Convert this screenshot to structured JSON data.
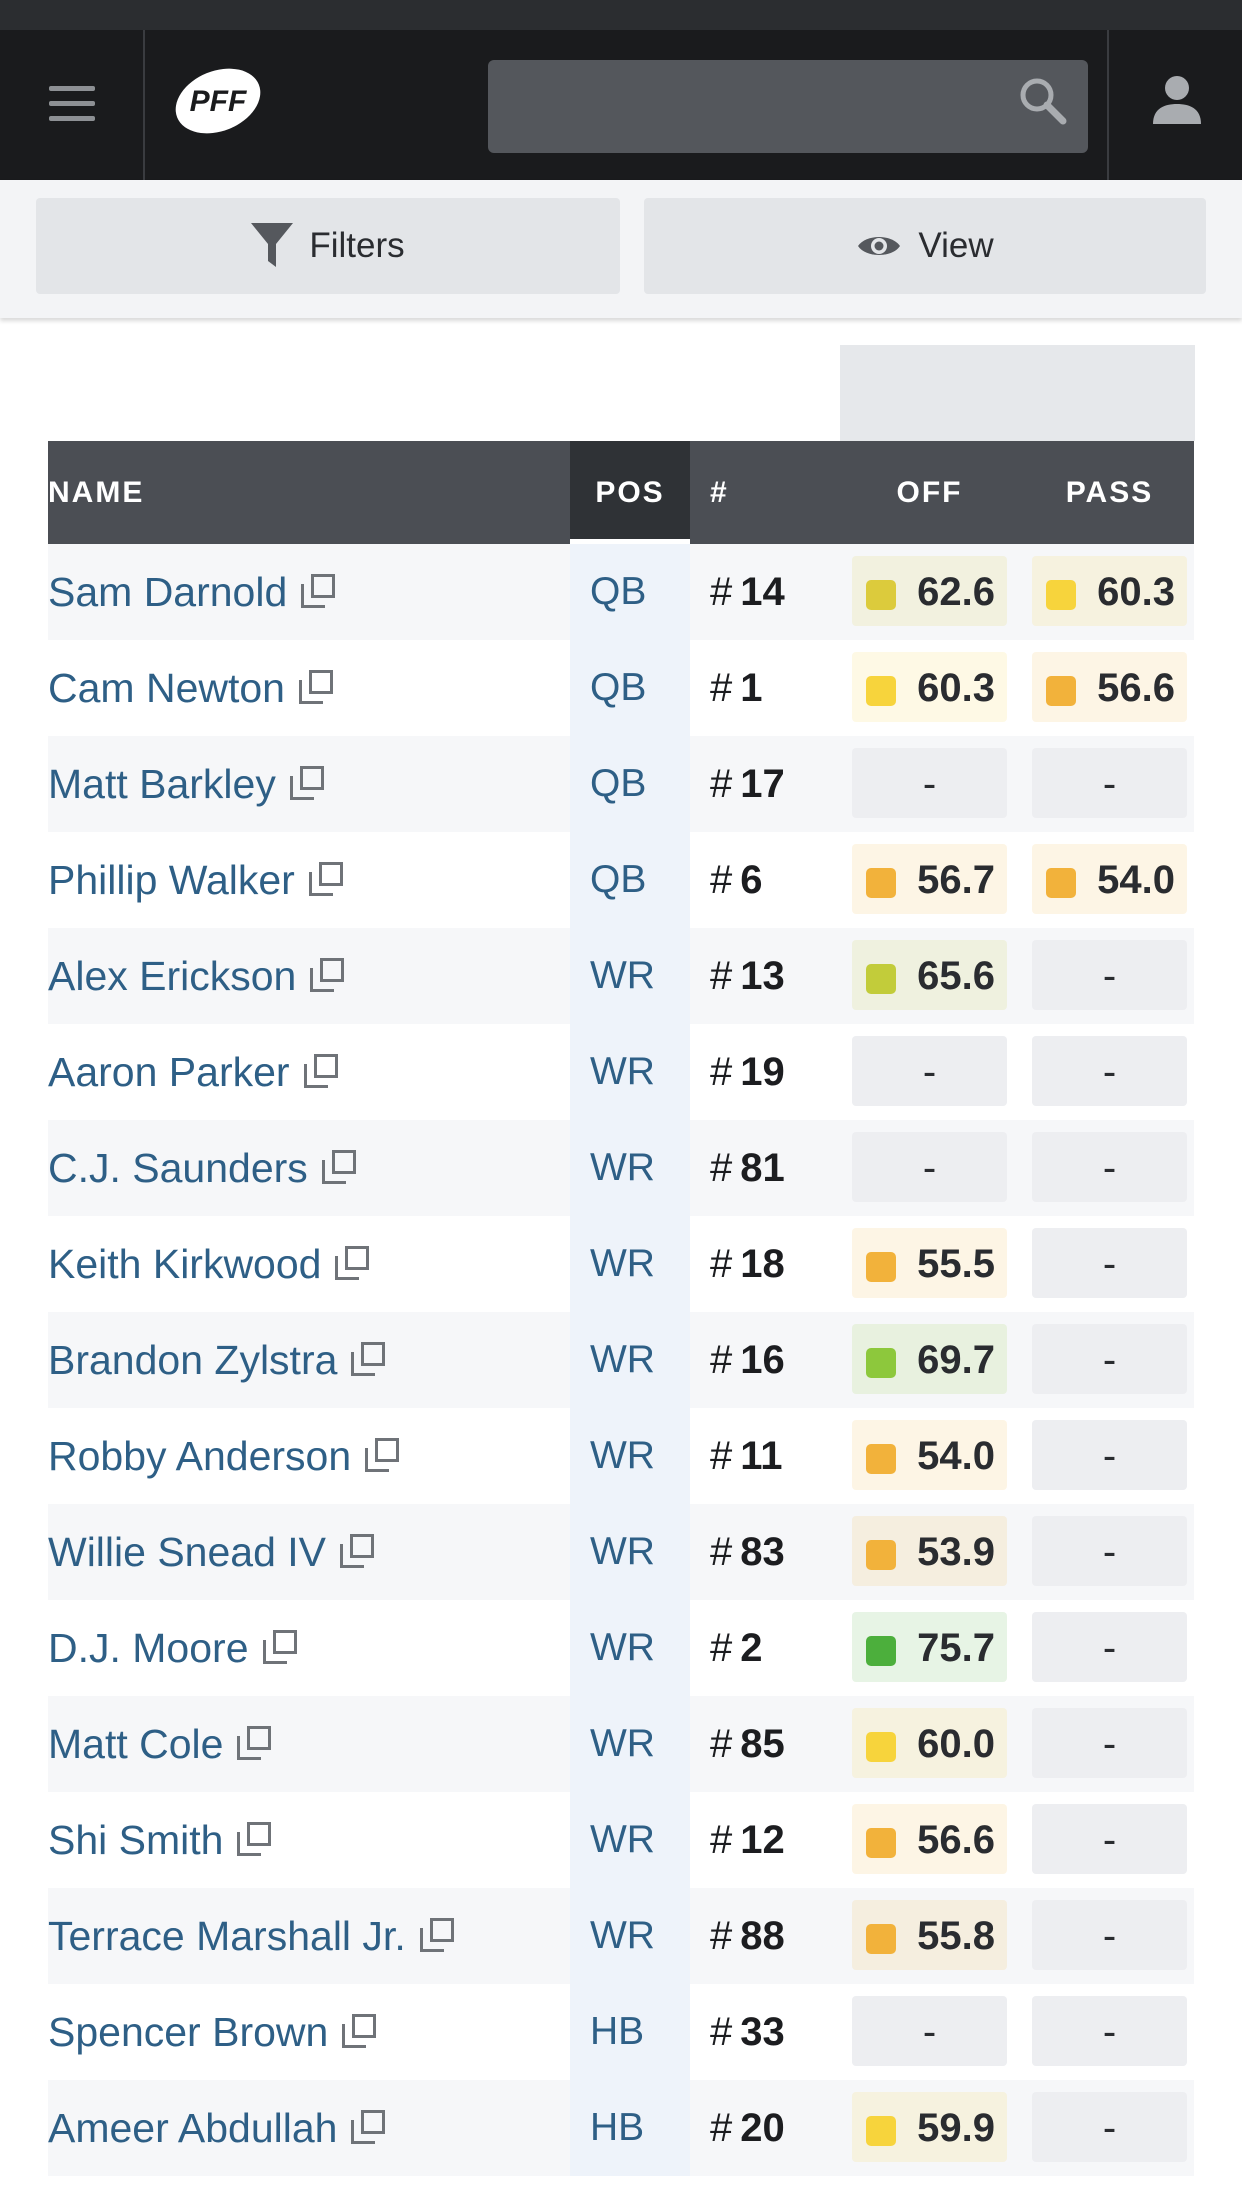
{
  "header": {
    "logo_text": "PFF",
    "search": {
      "value": "",
      "placeholder": ""
    }
  },
  "toolbar": {
    "filters_label": "Filters",
    "view_label": "View"
  },
  "columns": {
    "name": "NAME",
    "pos": "POS",
    "num": "#",
    "off": "OFF",
    "pass": "PASS"
  },
  "colors": {
    "green_dark": "#4caf3c",
    "green": "#8dc83c",
    "yellow_green": "#c2cc3a",
    "olive_yellow": "#dccb3c",
    "yellow": "#f7d43c",
    "orange": "#f2b23b"
  },
  "players": [
    {
      "name": "Sam Darnold",
      "pos": "QB",
      "num_prefix": "#",
      "num": "14",
      "off": "62.6",
      "off_color": "#dccb3c",
      "pass": "60.3",
      "pass_color": "#f7d43c"
    },
    {
      "name": "Cam Newton",
      "pos": "QB",
      "num_prefix": "#",
      "num": "1",
      "off": "60.3",
      "off_color": "#f7d43c",
      "pass": "56.6",
      "pass_color": "#f2b23b"
    },
    {
      "name": "Matt Barkley",
      "pos": "QB",
      "num_prefix": "#",
      "num": "17",
      "off": "-",
      "off_color": "",
      "pass": "-",
      "pass_color": ""
    },
    {
      "name": "Phillip Walker",
      "pos": "QB",
      "num_prefix": "#",
      "num": "6",
      "off": "56.7",
      "off_color": "#f2b23b",
      "pass": "54.0",
      "pass_color": "#f2b23b"
    },
    {
      "name": "Alex Erickson",
      "pos": "WR",
      "num_prefix": "#",
      "num": "13",
      "off": "65.6",
      "off_color": "#c2cc3a",
      "pass": "-",
      "pass_color": ""
    },
    {
      "name": "Aaron Parker",
      "pos": "WR",
      "num_prefix": "#",
      "num": "19",
      "off": "-",
      "off_color": "",
      "pass": "-",
      "pass_color": ""
    },
    {
      "name": "C.J. Saunders",
      "pos": "WR",
      "num_prefix": "#",
      "num": "81",
      "off": "-",
      "off_color": "",
      "pass": "-",
      "pass_color": ""
    },
    {
      "name": "Keith Kirkwood",
      "pos": "WR",
      "num_prefix": "#",
      "num": "18",
      "off": "55.5",
      "off_color": "#f2b23b",
      "pass": "-",
      "pass_color": ""
    },
    {
      "name": "Brandon Zylstra",
      "pos": "WR",
      "num_prefix": "#",
      "num": "16",
      "off": "69.7",
      "off_color": "#8dc83c",
      "pass": "-",
      "pass_color": ""
    },
    {
      "name": "Robby Anderson",
      "pos": "WR",
      "num_prefix": "#",
      "num": "11",
      "off": "54.0",
      "off_color": "#f2b23b",
      "pass": "-",
      "pass_color": ""
    },
    {
      "name": "Willie Snead IV",
      "pos": "WR",
      "num_prefix": "#",
      "num": "83",
      "off": "53.9",
      "off_color": "#f2b23b",
      "pass": "-",
      "pass_color": ""
    },
    {
      "name": "D.J. Moore",
      "pos": "WR",
      "num_prefix": "#",
      "num": "2",
      "off": "75.7",
      "off_color": "#4caf3c",
      "pass": "-",
      "pass_color": ""
    },
    {
      "name": "Matt Cole",
      "pos": "WR",
      "num_prefix": "#",
      "num": "85",
      "off": "60.0",
      "off_color": "#f7d43c",
      "pass": "-",
      "pass_color": ""
    },
    {
      "name": "Shi Smith",
      "pos": "WR",
      "num_prefix": "#",
      "num": "12",
      "off": "56.6",
      "off_color": "#f2b23b",
      "pass": "-",
      "pass_color": ""
    },
    {
      "name": "Terrace Marshall Jr.",
      "pos": "WR",
      "num_prefix": "#",
      "num": "88",
      "off": "55.8",
      "off_color": "#f2b23b",
      "pass": "-",
      "pass_color": ""
    },
    {
      "name": "Spencer Brown",
      "pos": "HB",
      "num_prefix": "#",
      "num": "33",
      "off": "-",
      "off_color": "",
      "pass": "-",
      "pass_color": ""
    },
    {
      "name": "Ameer Abdullah",
      "pos": "HB",
      "num_prefix": "#",
      "num": "20",
      "off": "59.9",
      "off_color": "#f7d43c",
      "pass": "-",
      "pass_color": ""
    }
  ]
}
